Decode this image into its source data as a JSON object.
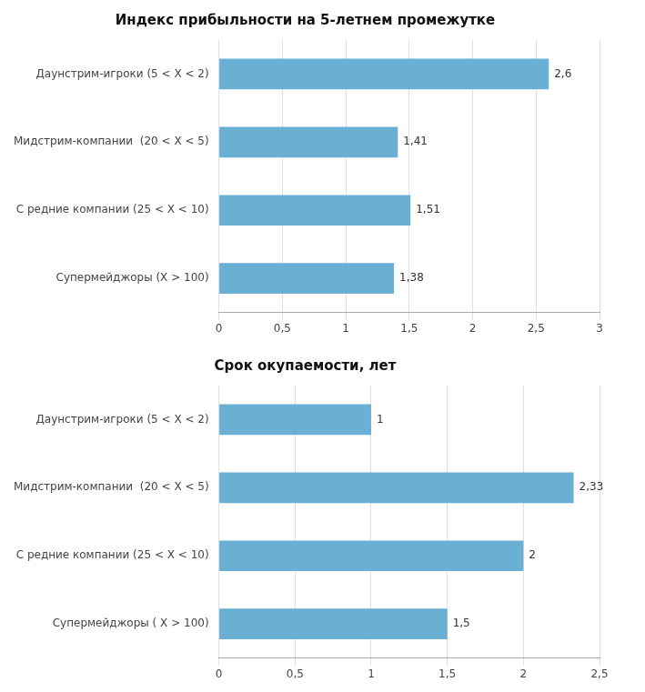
{
  "chart_data": [
    {
      "type": "bar",
      "orientation": "horizontal",
      "title": "Индекс прибыльности на 5-летнем промежутке",
      "categories": [
        "Даунстрим-игроки (5 < Х < 2)",
        "Мидстрим-компании  (20 < Х < 5)",
        "С редние компании (25 < Х < 10)",
        "Супермейджоры (Х > 100)"
      ],
      "values": [
        2.6,
        1.41,
        1.51,
        1.38
      ],
      "value_labels": [
        "2,6",
        "1,41",
        "1,51",
        "1,38"
      ],
      "data_labels": true,
      "color": "#6aafd4",
      "xlim": [
        0,
        3
      ],
      "xticks": [
        0,
        {
          "value": 0.5,
          "label": "0,5"
        },
        1,
        {
          "value": 1.5,
          "label": "1,5"
        },
        2,
        {
          "value": 2.5,
          "label": "2,5"
        },
        3
      ],
      "grid": true
    },
    {
      "type": "bar",
      "orientation": "horizontal",
      "title": "Срок окупаемости, лет",
      "categories": [
        "Даунстрим-игроки (5 < Х < 2)",
        "Мидстрим-компании  (20 < Х < 5)",
        "С редние компании (25 < Х < 10)",
        "Супермейджоры ( Х > 100)"
      ],
      "values": [
        1.0,
        2.33,
        2.0,
        1.5
      ],
      "value_labels": [
        "1",
        "2,33",
        "2",
        "1,5"
      ],
      "data_labels": true,
      "color": "#6aafd4",
      "xlim": [
        0,
        2.5
      ],
      "xticks": [
        0,
        {
          "value": 0.5,
          "label": "0,5"
        },
        1,
        {
          "value": 1.5,
          "label": "1,5"
        },
        2,
        {
          "value": 2.5,
          "label": "2,5"
        }
      ],
      "grid": true
    }
  ]
}
